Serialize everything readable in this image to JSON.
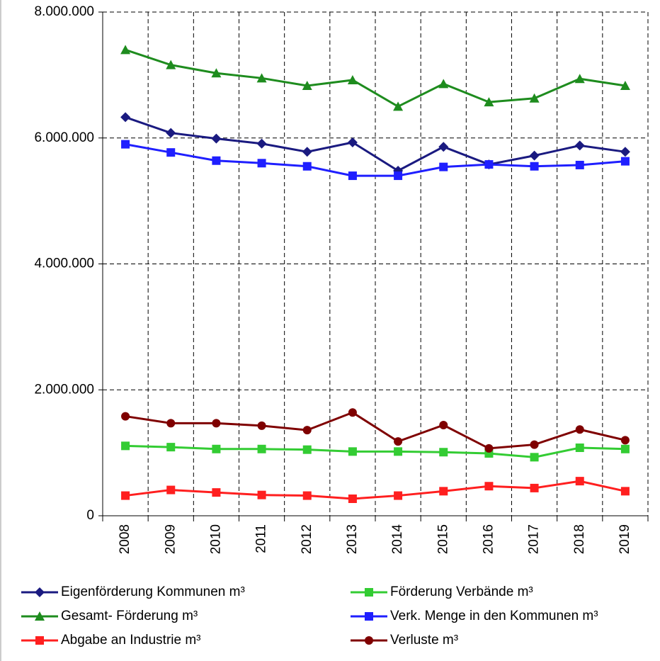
{
  "chart_data": {
    "type": "line",
    "categories": [
      "2008",
      "2009",
      "2010",
      "2011",
      "2012",
      "2013",
      "2014",
      "2015",
      "2016",
      "2017",
      "2018",
      "2019"
    ],
    "series": [
      {
        "name": "Eigenförderung Kommunen m³",
        "color": "#1a1a80",
        "marker": "diamond",
        "values": [
          6330000,
          6080000,
          5990000,
          5910000,
          5780000,
          5930000,
          5480000,
          5860000,
          5580000,
          5720000,
          5880000,
          5780000
        ]
      },
      {
        "name": "Förderung Verbände m³",
        "color": "#33cc33",
        "marker": "square",
        "values": [
          1110000,
          1090000,
          1060000,
          1060000,
          1050000,
          1020000,
          1020000,
          1010000,
          990000,
          930000,
          1080000,
          1060000
        ]
      },
      {
        "name": "Gesamt- Förderung m³",
        "color": "#1e8c1e",
        "marker": "triangle",
        "values": [
          7400000,
          7160000,
          7030000,
          6950000,
          6830000,
          6920000,
          6500000,
          6860000,
          6570000,
          6630000,
          6940000,
          6830000
        ]
      },
      {
        "name": "Verk. Menge in den Kommunen m³",
        "color": "#1f1fff",
        "marker": "square",
        "values": [
          5900000,
          5770000,
          5640000,
          5600000,
          5550000,
          5400000,
          5400000,
          5540000,
          5580000,
          5550000,
          5570000,
          5630000
        ]
      },
      {
        "name": "Abgabe an Industrie m³",
        "color": "#ff1f1f",
        "marker": "square",
        "values": [
          320000,
          410000,
          370000,
          330000,
          320000,
          270000,
          320000,
          390000,
          470000,
          440000,
          550000,
          390000
        ]
      },
      {
        "name": "Verluste m³",
        "color": "#7f0000",
        "marker": "circle",
        "values": [
          1580000,
          1470000,
          1470000,
          1430000,
          1360000,
          1640000,
          1180000,
          1440000,
          1070000,
          1130000,
          1370000,
          1200000
        ]
      }
    ],
    "ylim": [
      0,
      8000000
    ],
    "yticks": [
      0,
      {
        "value": 2000000,
        "label": "2.000.000"
      },
      {
        "value": 4000000,
        "label": "4.000.000"
      },
      {
        "value": 6000000,
        "label": "6.000.000"
      },
      {
        "value": 8000000,
        "label": "8.000.000"
      }
    ],
    "grid": true,
    "legend": "bottom"
  }
}
